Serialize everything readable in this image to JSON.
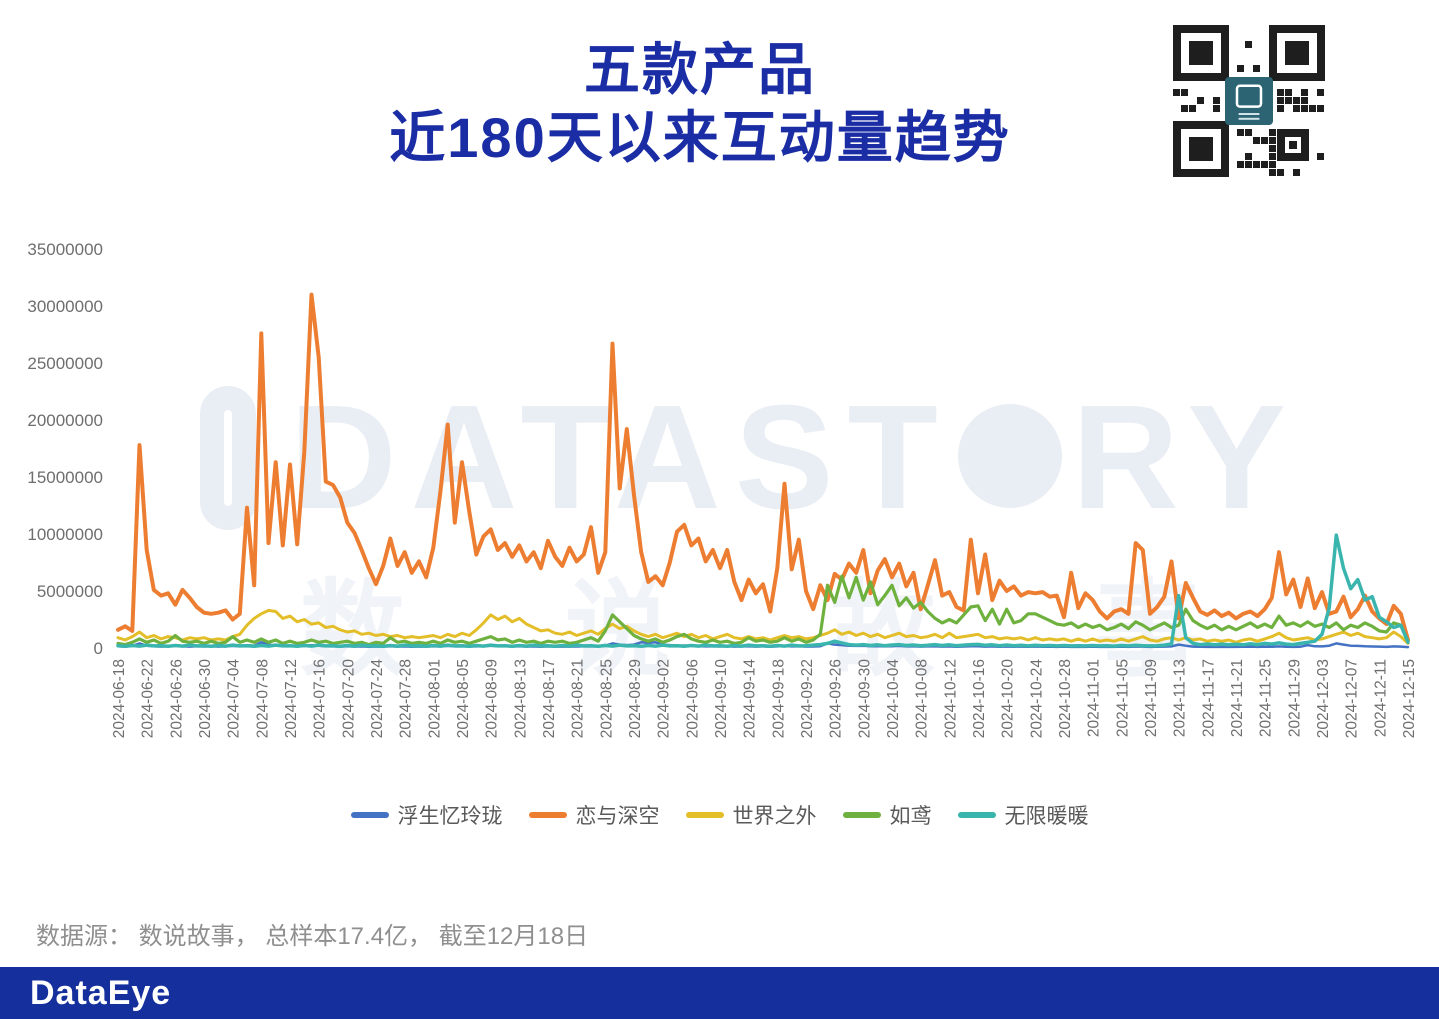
{
  "header": {
    "title_line1": "五款产品",
    "title_line2": "近180天以来互动量趋势"
  },
  "watermark": {
    "brand_prefix": "DATAST",
    "brand_suffix": "RY",
    "brand_cn": "数说故事"
  },
  "footer": {
    "source_note": "数据源： 数说故事， 总样本17.4亿， 截至12月18日"
  },
  "brand_bar": {
    "logo_text": "DataEye",
    "background": "#15309D"
  },
  "colors": {
    "title": "#1B2DA4",
    "axis_text": "#6E6E6E",
    "legend_text": "#595959",
    "footer_text": "#8F8F8F",
    "qr_center_logo": "#2C6473"
  },
  "chart_data": {
    "type": "line",
    "title": "五款产品近180天以来互动量趋势",
    "xlabel": "",
    "ylabel": "",
    "x_start": "2024-06-18",
    "x_end": "2024-12-15",
    "x_interval_days": 1,
    "x_tick_every_days": 4,
    "x_tick_labels": [
      "2024-06-18",
      "2024-06-22",
      "2024-06-26",
      "2024-06-30",
      "2024-07-04",
      "2024-07-08",
      "2024-07-12",
      "2024-07-16",
      "2024-07-20",
      "2024-07-24",
      "2024-07-28",
      "2024-08-01",
      "2024-08-05",
      "2024-08-09",
      "2024-08-13",
      "2024-08-17",
      "2024-08-21",
      "2024-08-25",
      "2024-08-29",
      "2024-09-02",
      "2024-09-06",
      "2024-09-10",
      "2024-09-14",
      "2024-09-18",
      "2024-09-22",
      "2024-09-26",
      "2024-09-30",
      "2024-10-04",
      "2024-10-08",
      "2024-10-12",
      "2024-10-16",
      "2024-10-20",
      "2024-10-24",
      "2024-10-28",
      "2024-11-01",
      "2024-11-05",
      "2024-11-09",
      "2024-11-13",
      "2024-11-17",
      "2024-11-21",
      "2024-11-25",
      "2024-11-29",
      "2024-12-03",
      "2024-12-07",
      "2024-12-11",
      "2024-12-15"
    ],
    "y_tick_labels": [
      "0",
      "5000000",
      "10000000",
      "15000000",
      "20000000",
      "25000000",
      "30000000",
      "35000000"
    ],
    "ylim": [
      0,
      35000000
    ],
    "value_unit": 1000000,
    "grid": false,
    "legend_position": "bottom",
    "series": [
      {
        "name": "浮生忆玲珑",
        "color": "#4472C4",
        "values": [
          0.15,
          0.12,
          0.18,
          0.4,
          0.2,
          0.15,
          0.12,
          0.16,
          0.2,
          0.14,
          0.12,
          0.15,
          0.13,
          0.16,
          0.12,
          0.14,
          0.18,
          0.14,
          0.25,
          0.2,
          0.5,
          0.3,
          0.22,
          0.18,
          0.2,
          0.15,
          0.18,
          0.25,
          0.2,
          0.16,
          0.14,
          0.12,
          0.15,
          0.12,
          0.14,
          0.11,
          0.13,
          0.12,
          0.15,
          0.12,
          0.14,
          0.11,
          0.13,
          0.12,
          0.15,
          0.13,
          0.18,
          0.14,
          0.16,
          0.13,
          0.14,
          0.16,
          0.2,
          0.15,
          0.17,
          0.13,
          0.15,
          0.12,
          0.14,
          0.11,
          0.14,
          0.12,
          0.13,
          0.12,
          0.13,
          0.14,
          0.16,
          0.13,
          0.2,
          0.4,
          0.3,
          0.25,
          0.3,
          0.5,
          0.45,
          0.5,
          0.3,
          0.25,
          0.2,
          0.22,
          0.18,
          0.16,
          0.14,
          0.15,
          0.13,
          0.15,
          0.12,
          0.13,
          0.15,
          0.12,
          0.14,
          0.11,
          0.14,
          0.18,
          0.14,
          0.15,
          0.12,
          0.13,
          0.16,
          0.4,
          0.3,
          0.25,
          0.2,
          0.18,
          0.2,
          0.15,
          0.17,
          0.14,
          0.16,
          0.18,
          0.14,
          0.15,
          0.12,
          0.14,
          0.16,
          0.12,
          0.14,
          0.11,
          0.13,
          0.15,
          0.16,
          0.12,
          0.14,
          0.11,
          0.13,
          0.11,
          0.12,
          0.11,
          0.13,
          0.11,
          0.12,
          0.1,
          0.12,
          0.1,
          0.11,
          0.1,
          0.12,
          0.1,
          0.11,
          0.1,
          0.12,
          0.1,
          0.13,
          0.12,
          0.1,
          0.11,
          0.12,
          0.14,
          0.3,
          0.2,
          0.12,
          0.11,
          0.1,
          0.11,
          0.1,
          0.11,
          0.1,
          0.11,
          0.12,
          0.1,
          0.12,
          0.11,
          0.14,
          0.11,
          0.1,
          0.11,
          0.25,
          0.15,
          0.14,
          0.2,
          0.4,
          0.3,
          0.2,
          0.18,
          0.15,
          0.13,
          0.12,
          0.1,
          0.14,
          0.12,
          0.08
        ]
      },
      {
        "name": "恋与深空",
        "color": "#ED7D31",
        "values": [
          1.6,
          1.9,
          1.5,
          17.8,
          8.6,
          5.1,
          4.6,
          4.8,
          3.8,
          5.1,
          4.4,
          3.6,
          3.1,
          3.0,
          3.1,
          3.3,
          2.5,
          3.0,
          12.3,
          5.5,
          27.6,
          9.2,
          16.3,
          9.0,
          16.1,
          9.1,
          17.2,
          31.0,
          25.5,
          14.6,
          14.3,
          13.2,
          11.0,
          10.1,
          8.6,
          7.0,
          5.6,
          7.2,
          9.6,
          7.2,
          8.4,
          6.6,
          7.6,
          6.2,
          8.8,
          13.8,
          19.6,
          11.0,
          16.3,
          12.0,
          8.2,
          9.8,
          10.4,
          8.6,
          9.2,
          8.0,
          9.0,
          7.6,
          8.4,
          7.0,
          9.4,
          8.0,
          7.2,
          8.8,
          7.6,
          8.2,
          10.6,
          6.6,
          8.4,
          26.7,
          14.0,
          19.2,
          13.4,
          8.4,
          5.8,
          6.3,
          5.5,
          7.5,
          10.2,
          10.8,
          9.0,
          9.6,
          7.6,
          8.6,
          7.0,
          8.6,
          5.8,
          4.2,
          6.0,
          4.8,
          5.6,
          3.2,
          7.0,
          14.4,
          6.9,
          9.5,
          5.0,
          3.4,
          5.5,
          4.2,
          6.5,
          6.0,
          7.4,
          6.6,
          8.6,
          4.8,
          6.8,
          7.8,
          6.2,
          7.4,
          5.4,
          6.6,
          3.4,
          5.5,
          7.7,
          4.6,
          4.9,
          3.6,
          3.3,
          9.5,
          4.8,
          8.2,
          4.2,
          5.9,
          5.0,
          5.4,
          4.6,
          4.9,
          4.8,
          4.9,
          4.5,
          4.6,
          2.7,
          6.6,
          3.5,
          4.8,
          4.2,
          3.2,
          2.6,
          3.2,
          3.4,
          3.0,
          9.2,
          8.6,
          3.0,
          3.6,
          4.5,
          7.6,
          2.6,
          5.7,
          4.4,
          3.2,
          2.9,
          3.3,
          2.8,
          3.1,
          2.6,
          3.0,
          3.2,
          2.8,
          3.4,
          4.4,
          8.4,
          4.7,
          6.0,
          3.6,
          6.1,
          3.5,
          4.9,
          3.0,
          3.2,
          4.5,
          2.7,
          3.4,
          4.6,
          3.2,
          2.6,
          2.1,
          3.7,
          3.0,
          0.7
        ]
      },
      {
        "name": "世界之外",
        "color": "#E3BE29",
        "values": [
          0.9,
          0.7,
          1.0,
          1.4,
          0.9,
          1.1,
          0.8,
          1.0,
          0.9,
          0.7,
          0.9,
          0.8,
          0.9,
          0.7,
          0.8,
          0.7,
          1.0,
          1.2,
          2.0,
          2.6,
          3.0,
          3.3,
          3.2,
          2.6,
          2.8,
          2.3,
          2.5,
          2.1,
          2.2,
          1.8,
          1.9,
          1.6,
          1.4,
          1.5,
          1.2,
          1.3,
          1.1,
          1.2,
          1.0,
          1.1,
          0.9,
          1.0,
          0.9,
          1.0,
          1.1,
          0.9,
          1.2,
          1.0,
          1.3,
          1.1,
          1.6,
          2.2,
          2.9,
          2.5,
          2.8,
          2.3,
          2.6,
          2.1,
          1.8,
          1.5,
          1.6,
          1.3,
          1.2,
          1.4,
          1.1,
          1.3,
          1.5,
          1.2,
          1.7,
          2.1,
          1.7,
          1.9,
          1.5,
          1.2,
          1.0,
          1.2,
          0.9,
          1.1,
          1.3,
          1.0,
          1.2,
          0.9,
          1.1,
          0.8,
          1.0,
          1.2,
          0.9,
          0.8,
          1.0,
          0.8,
          0.9,
          0.7,
          0.9,
          1.1,
          0.9,
          1.0,
          0.8,
          0.9,
          1.1,
          1.3,
          1.6,
          1.2,
          1.4,
          1.1,
          1.3,
          1.0,
          1.2,
          0.9,
          1.1,
          1.3,
          1.0,
          1.1,
          0.9,
          1.0,
          1.2,
          0.9,
          1.3,
          0.9,
          1.0,
          1.1,
          1.2,
          0.9,
          1.0,
          0.8,
          0.9,
          0.8,
          0.9,
          0.7,
          0.9,
          0.7,
          0.8,
          0.7,
          0.8,
          0.6,
          0.8,
          0.6,
          0.8,
          0.6,
          0.7,
          0.6,
          0.8,
          0.6,
          0.8,
          1.0,
          0.7,
          0.6,
          0.8,
          0.9,
          0.7,
          0.9,
          0.7,
          0.8,
          0.6,
          0.7,
          0.6,
          0.7,
          0.5,
          0.7,
          0.8,
          0.6,
          0.8,
          1.0,
          1.3,
          0.9,
          0.7,
          0.8,
          0.9,
          0.7,
          0.8,
          1.0,
          1.2,
          1.4,
          1.1,
          1.3,
          1.0,
          0.9,
          0.8,
          0.9,
          1.4,
          1.0,
          0.4
        ]
      },
      {
        "name": "如鸢",
        "color": "#6FB13E",
        "values": [
          0.4,
          0.3,
          0.5,
          0.8,
          0.5,
          0.7,
          0.4,
          0.6,
          1.1,
          0.6,
          0.5,
          0.6,
          0.4,
          0.6,
          0.4,
          0.5,
          1.0,
          0.5,
          0.7,
          0.5,
          0.8,
          0.5,
          0.7,
          0.4,
          0.6,
          0.4,
          0.5,
          0.7,
          0.5,
          0.6,
          0.4,
          0.5,
          0.6,
          0.4,
          0.5,
          0.3,
          0.5,
          0.4,
          0.9,
          0.5,
          0.6,
          0.4,
          0.5,
          0.4,
          0.6,
          0.4,
          0.7,
          0.5,
          0.6,
          0.4,
          0.6,
          0.8,
          1.0,
          0.7,
          0.8,
          0.5,
          0.7,
          0.5,
          0.6,
          0.4,
          0.6,
          0.5,
          0.6,
          0.4,
          0.5,
          0.7,
          0.9,
          0.6,
          1.5,
          2.9,
          2.3,
          1.7,
          1.1,
          0.8,
          0.6,
          0.8,
          0.5,
          0.7,
          1.0,
          1.2,
          0.8,
          0.6,
          0.5,
          0.7,
          0.5,
          0.6,
          0.4,
          0.5,
          0.9,
          0.6,
          0.7,
          0.5,
          0.6,
          0.9,
          0.6,
          0.8,
          0.5,
          0.7,
          1.2,
          5.5,
          4.0,
          6.3,
          4.4,
          6.2,
          4.2,
          5.8,
          3.8,
          4.6,
          5.5,
          3.7,
          4.4,
          3.5,
          4.0,
          3.2,
          2.6,
          2.2,
          2.5,
          2.2,
          2.9,
          3.6,
          3.7,
          2.4,
          3.4,
          2.1,
          3.4,
          2.2,
          2.4,
          3.0,
          3.0,
          2.7,
          2.4,
          2.1,
          2.0,
          2.2,
          1.8,
          2.1,
          1.8,
          2.0,
          1.6,
          1.8,
          2.1,
          1.7,
          2.3,
          2.0,
          1.6,
          1.9,
          2.2,
          1.8,
          2.0,
          3.4,
          2.4,
          2.0,
          1.7,
          2.0,
          1.6,
          1.9,
          1.6,
          1.9,
          2.2,
          1.8,
          2.1,
          1.8,
          2.8,
          2.0,
          2.2,
          1.9,
          2.3,
          1.9,
          2.1,
          1.8,
          2.2,
          1.6,
          2.0,
          1.8,
          2.2,
          1.9,
          1.5,
          1.4,
          2.2,
          2.0,
          0.6
        ]
      },
      {
        "name": "无限暖暖",
        "color": "#3AB5AE",
        "values": [
          0.2,
          0.15,
          0.22,
          0.17,
          0.25,
          0.18,
          0.2,
          0.15,
          0.22,
          0.17,
          0.25,
          0.18,
          0.2,
          0.15,
          0.22,
          0.17,
          0.25,
          0.18,
          0.2,
          0.15,
          0.22,
          0.17,
          0.25,
          0.18,
          0.2,
          0.15,
          0.22,
          0.17,
          0.25,
          0.18,
          0.2,
          0.15,
          0.22,
          0.17,
          0.25,
          0.18,
          0.2,
          0.15,
          0.22,
          0.17,
          0.25,
          0.18,
          0.2,
          0.15,
          0.22,
          0.17,
          0.25,
          0.18,
          0.2,
          0.15,
          0.22,
          0.17,
          0.25,
          0.18,
          0.2,
          0.15,
          0.22,
          0.17,
          0.25,
          0.18,
          0.2,
          0.15,
          0.22,
          0.17,
          0.25,
          0.18,
          0.2,
          0.15,
          0.22,
          0.17,
          0.25,
          0.18,
          0.2,
          0.15,
          0.22,
          0.17,
          0.25,
          0.18,
          0.2,
          0.15,
          0.22,
          0.17,
          0.25,
          0.18,
          0.2,
          0.15,
          0.22,
          0.17,
          0.25,
          0.18,
          0.2,
          0.15,
          0.22,
          0.17,
          0.25,
          0.18,
          0.2,
          0.25,
          0.3,
          0.4,
          0.6,
          0.45,
          0.3,
          0.25,
          0.3,
          0.22,
          0.28,
          0.2,
          0.26,
          0.3,
          0.22,
          0.26,
          0.2,
          0.24,
          0.3,
          0.22,
          0.28,
          0.2,
          0.25,
          0.3,
          0.32,
          0.24,
          0.28,
          0.2,
          0.26,
          0.2,
          0.24,
          0.18,
          0.24,
          0.2,
          0.22,
          0.18,
          0.22,
          0.18,
          0.2,
          0.18,
          0.22,
          0.18,
          0.2,
          0.17,
          0.22,
          0.18,
          0.24,
          0.2,
          0.18,
          0.2,
          0.25,
          0.35,
          4.6,
          0.9,
          0.4,
          0.3,
          0.35,
          0.28,
          0.34,
          0.28,
          0.33,
          0.28,
          0.38,
          0.3,
          0.4,
          0.34,
          0.45,
          0.34,
          0.3,
          0.4,
          0.5,
          0.6,
          1.2,
          3.5,
          9.9,
          7.0,
          5.2,
          6.0,
          4.2,
          4.5,
          2.7,
          2.3,
          1.8,
          2.0,
          0.5
        ]
      }
    ]
  }
}
